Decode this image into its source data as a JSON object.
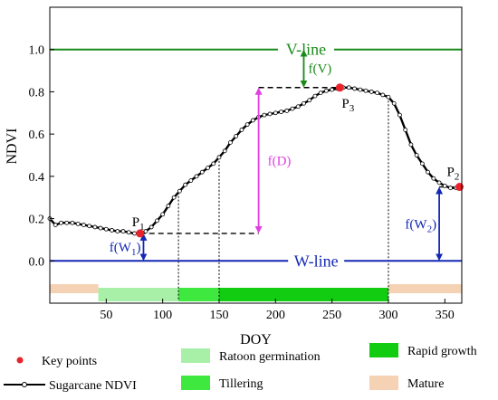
{
  "chart_data": {
    "type": "line",
    "xlabel": "DOY",
    "ylabel": "NDVI",
    "xlim": [
      0,
      365
    ],
    "ylim": [
      -0.2,
      1.2
    ],
    "x_ticks": [
      50,
      100,
      150,
      200,
      250,
      300,
      350
    ],
    "y_ticks": [
      0.0,
      0.2,
      0.4,
      0.6,
      0.8,
      1.0
    ],
    "grid": false,
    "series": [
      {
        "name": "Sugarcane NDVI",
        "color": "#000000",
        "marker": "open-circle",
        "x": [
          0,
          5,
          10,
          15,
          20,
          25,
          30,
          35,
          40,
          45,
          50,
          55,
          60,
          65,
          70,
          75,
          80,
          85,
          90,
          95,
          100,
          105,
          110,
          115,
          120,
          125,
          130,
          135,
          140,
          145,
          150,
          155,
          160,
          165,
          170,
          175,
          180,
          185,
          190,
          195,
          200,
          205,
          210,
          215,
          220,
          225,
          230,
          235,
          240,
          245,
          250,
          255,
          260,
          265,
          270,
          275,
          280,
          285,
          290,
          295,
          300,
          305,
          310,
          315,
          320,
          325,
          330,
          335,
          340,
          345,
          350,
          355,
          360
        ],
        "y": [
          0.2,
          0.17,
          0.18,
          0.18,
          0.18,
          0.175,
          0.17,
          0.165,
          0.16,
          0.155,
          0.15,
          0.145,
          0.14,
          0.14,
          0.135,
          0.13,
          0.13,
          0.14,
          0.16,
          0.19,
          0.22,
          0.26,
          0.3,
          0.33,
          0.36,
          0.38,
          0.4,
          0.42,
          0.44,
          0.46,
          0.49,
          0.52,
          0.56,
          0.59,
          0.62,
          0.645,
          0.665,
          0.68,
          0.69,
          0.695,
          0.7,
          0.705,
          0.71,
          0.72,
          0.73,
          0.745,
          0.76,
          0.78,
          0.795,
          0.805,
          0.81,
          0.815,
          0.82,
          0.82,
          0.815,
          0.81,
          0.805,
          0.8,
          0.795,
          0.785,
          0.775,
          0.745,
          0.69,
          0.62,
          0.55,
          0.5,
          0.46,
          0.42,
          0.39,
          0.37,
          0.355,
          0.345,
          0.345
        ]
      }
    ],
    "reference_lines": [
      {
        "name": "V-line",
        "y": 1.0,
        "color": "#1a8a1a"
      },
      {
        "name": "W-line",
        "y": 0.0,
        "color": "#1428b4"
      }
    ],
    "key_points": [
      {
        "label": "P1",
        "x": 80,
        "y": 0.13
      },
      {
        "label": "P3",
        "x": 257,
        "y": 0.82
      },
      {
        "label": "P2",
        "x": 363,
        "y": 0.35
      }
    ],
    "stage_segments": [
      {
        "stage": "Mature",
        "x0": 0,
        "x1": 43,
        "row": "top"
      },
      {
        "stage": "Ratoon germination",
        "x0": 43,
        "x1": 114,
        "row": "bottom"
      },
      {
        "stage": "Tillering",
        "x0": 114,
        "x1": 150,
        "row": "bottom"
      },
      {
        "stage": "Rapid growth",
        "x0": 150,
        "x1": 300,
        "row": "bottom"
      },
      {
        "stage": "Mature",
        "x0": 300,
        "x1": 365,
        "row": "top"
      }
    ],
    "vertical_dotted_lines": [
      114,
      150,
      300
    ],
    "dashed_levels": [
      {
        "y": 0.82,
        "x0": 185,
        "x1": 257
      },
      {
        "y": 0.13,
        "x0": 80,
        "x1": 185
      },
      {
        "y": 0.35,
        "x0": 345,
        "x1": 363
      }
    ],
    "annotations": [
      {
        "text": "f(V)",
        "x": 225,
        "y_from": 0.82,
        "y_to": 1.0,
        "color": "#1a8a1a"
      },
      {
        "text": "f(D)",
        "x": 185,
        "y_from": 0.13,
        "y_to": 0.82,
        "color": "#e040e0"
      },
      {
        "text": "f(W",
        "sub": "1",
        "x": 83,
        "y_from": 0.0,
        "y_to": 0.13,
        "color": "#1428b4"
      },
      {
        "text": "f(W",
        "sub": "2",
        "x": 345,
        "y_from": 0.0,
        "y_to": 0.35,
        "color": "#1428b4"
      }
    ],
    "legend": [
      {
        "label": "Key points",
        "kind": "dot",
        "color": "#e8232a"
      },
      {
        "label": "Sugarcane NDVI",
        "kind": "line",
        "color": "#000000"
      },
      {
        "label": "Ratoon germination",
        "kind": "swatch",
        "color": "#a8f0a8"
      },
      {
        "label": "Tillering",
        "kind": "swatch",
        "color": "#3ee83e"
      },
      {
        "label": "Rapid growth",
        "kind": "swatch",
        "color": "#12cc12"
      },
      {
        "label": "Mature",
        "kind": "swatch",
        "color": "#f6d2b4"
      }
    ]
  }
}
